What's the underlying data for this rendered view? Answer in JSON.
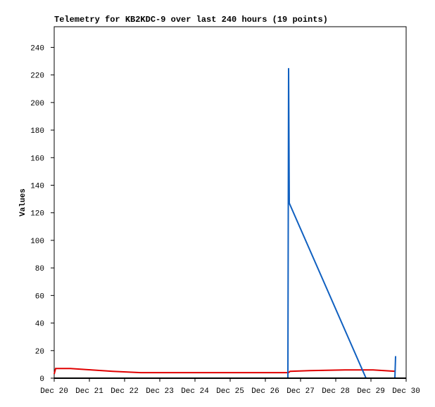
{
  "chart_data": {
    "type": "line",
    "title": "Telemetry for KB2KDC-9 over last 240 hours (19 points)",
    "y_label": "Values",
    "xlim": [
      20,
      30
    ],
    "xticks": [
      {
        "value": 20,
        "label": "Dec 20"
      },
      {
        "value": 21,
        "label": "Dec 21"
      },
      {
        "value": 22,
        "label": "Dec 22"
      },
      {
        "value": 23,
        "label": "Dec 23"
      },
      {
        "value": 24,
        "label": "Dec 24"
      },
      {
        "value": 25,
        "label": "Dec 25"
      },
      {
        "value": 26,
        "label": "Dec 26"
      },
      {
        "value": 27,
        "label": "Dec 27"
      },
      {
        "value": 28,
        "label": "Dec 28"
      },
      {
        "value": 29,
        "label": "Dec 29"
      },
      {
        "value": 30,
        "label": "Dec 30"
      }
    ],
    "ylim": [
      0,
      255
    ],
    "yticks": [
      0,
      20,
      40,
      60,
      80,
      100,
      120,
      140,
      160,
      180,
      200,
      220,
      240
    ],
    "grid": false,
    "series": [
      {
        "color": "#e00000",
        "x": [
          20.0,
          20.04,
          20.46,
          21.06,
          21.66,
          22.46,
          26.66,
          26.7,
          27.26,
          28.26,
          29.06,
          29.7
        ],
        "values": [
          3,
          7,
          7,
          6,
          5,
          4,
          4,
          5,
          5.5,
          6,
          6,
          5
        ]
      },
      {
        "color": "#1060c0",
        "x": [
          20.0,
          26.64,
          26.66,
          26.68,
          28.86,
          29.68,
          29.7
        ],
        "values": [
          0,
          0,
          225,
          127,
          0,
          0,
          16
        ]
      }
    ]
  }
}
